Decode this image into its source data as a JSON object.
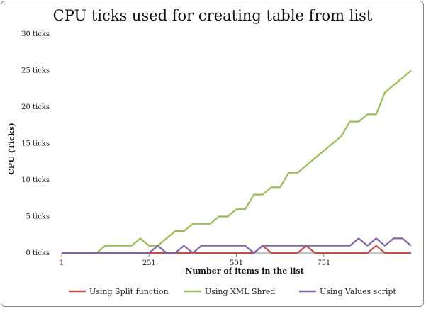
{
  "chart_data": {
    "type": "line",
    "title": "CPU ticks used for creating table from list",
    "xlabel": "Number of items in the list",
    "ylabel": "CPU (Ticks)",
    "x_ticks": [
      "1",
      "251",
      "501",
      "751"
    ],
    "y_ticks": [
      "0 ticks",
      "5 ticks",
      "10 ticks",
      "15 ticks",
      "20 ticks",
      "25 ticks",
      "30 ticks"
    ],
    "xlim": [
      1,
      1001
    ],
    "ylim": [
      0,
      30
    ],
    "grid": false,
    "legend_position": "bottom",
    "x": [
      1,
      26,
      51,
      76,
      101,
      126,
      151,
      176,
      201,
      226,
      251,
      276,
      301,
      326,
      351,
      376,
      401,
      426,
      451,
      476,
      501,
      526,
      551,
      576,
      601,
      626,
      651,
      676,
      701,
      726,
      751,
      776,
      801,
      826,
      851,
      876,
      901,
      926,
      951,
      976,
      1001
    ],
    "series": [
      {
        "name": "Using Split function",
        "color": "#c0504d",
        "values": [
          0,
          0,
          0,
          0,
          0,
          0,
          0,
          0,
          0,
          0,
          0,
          0,
          0,
          0,
          0,
          0,
          0,
          0,
          0,
          0,
          0,
          0,
          0,
          1,
          0,
          0,
          0,
          0,
          1,
          0,
          0,
          0,
          0,
          0,
          0,
          0,
          1,
          0,
          0,
          0,
          0
        ]
      },
      {
        "name": "Using XML Shred",
        "color": "#9bbb59",
        "values": [
          0,
          0,
          0,
          0,
          0,
          1,
          1,
          1,
          1,
          2,
          1,
          1,
          2,
          3,
          3,
          4,
          4,
          4,
          5,
          5,
          6,
          6,
          8,
          8,
          9,
          9,
          11,
          11,
          12,
          13,
          14,
          15,
          16,
          18,
          18,
          19,
          19,
          22,
          23,
          24,
          25
        ]
      },
      {
        "name": "Using Values script",
        "color": "#8064a2",
        "values": [
          0,
          0,
          0,
          0,
          0,
          0,
          0,
          0,
          0,
          0,
          0,
          1,
          0,
          0,
          1,
          0,
          1,
          1,
          1,
          1,
          1,
          1,
          0,
          1,
          1,
          1,
          1,
          1,
          1,
          1,
          1,
          1,
          1,
          1,
          2,
          1,
          2,
          1,
          2,
          2,
          1
        ]
      }
    ]
  }
}
